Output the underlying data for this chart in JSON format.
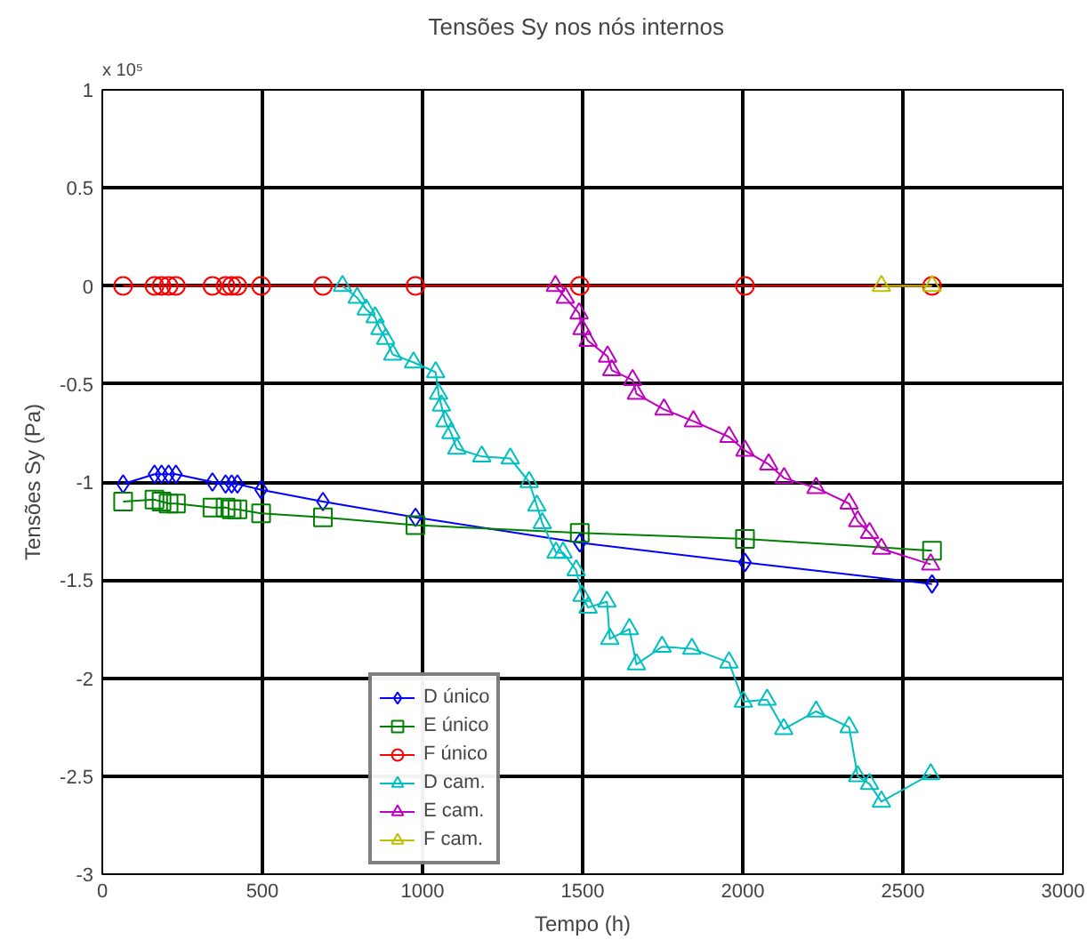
{
  "chart_data": {
    "type": "line",
    "title": "Tensões  Sy nos  nós internos",
    "xlabel": "Tempo (h)",
    "ylabel": "Tensões Sy (Pa)",
    "annotations": [
      "x 10⁵"
    ],
    "xlim": [
      0,
      3000
    ],
    "xticks": [
      0,
      500,
      1000,
      1500,
      2000,
      2500,
      3000
    ],
    "ylim": [
      -3,
      1
    ],
    "yticks": [
      -3,
      -2.5,
      -2,
      -1.5,
      -1,
      -0.5,
      0,
      0.5,
      1
    ],
    "grid": true,
    "legend": "bottom left",
    "line_style": "solid",
    "series": [
      {
        "name": "D único",
        "color": "#0000ff",
        "marker": "diamond",
        "x": [
          65,
          163,
          185,
          207,
          230,
          344,
          385,
          404,
          422,
          496,
          689,
          978,
          1491,
          2007,
          2591
        ],
        "values": [
          -1.01,
          -0.96,
          -0.96,
          -0.96,
          -0.96,
          -1.0,
          -1.01,
          -1.01,
          -1.01,
          -1.04,
          -1.1,
          -1.18,
          -1.31,
          -1.41,
          -1.52
        ]
      },
      {
        "name": "E único",
        "color": "#008000",
        "marker": "square",
        "x": [
          65,
          163,
          185,
          207,
          230,
          344,
          385,
          404,
          422,
          496,
          689,
          978,
          1491,
          2007,
          2591
        ],
        "values": [
          -1.1,
          -1.09,
          -1.1,
          -1.11,
          -1.11,
          -1.13,
          -1.13,
          -1.14,
          -1.14,
          -1.16,
          -1.18,
          -1.22,
          -1.26,
          -1.29,
          -1.35
        ]
      },
      {
        "name": "F único",
        "color": "#ff0000",
        "marker": "circle",
        "x": [
          65,
          163,
          185,
          207,
          230,
          344,
          385,
          404,
          422,
          496,
          689,
          978,
          1491,
          2007,
          2591
        ],
        "values": [
          0,
          0,
          0,
          0,
          0,
          0,
          0,
          0,
          0,
          0,
          0,
          0,
          0,
          0,
          0
        ]
      },
      {
        "name": "D cam.",
        "color": "#00bfbf",
        "marker": "triangle",
        "x": [
          750,
          796,
          824,
          852,
          867,
          885,
          907,
          972,
          1041,
          1050,
          1059,
          1070,
          1089,
          1107,
          1185,
          1274,
          1333,
          1357,
          1374,
          1417,
          1439,
          1480,
          1498,
          1517,
          1576,
          1585,
          1646,
          1668,
          1748,
          1841,
          1957,
          2002,
          2076,
          2128,
          2229,
          2332,
          2359,
          2396,
          2433,
          2587
        ],
        "values": [
          0.0,
          -0.06,
          -0.12,
          -0.16,
          -0.22,
          -0.27,
          -0.35,
          -0.39,
          -0.44,
          -0.55,
          -0.61,
          -0.69,
          -0.75,
          -0.83,
          -0.87,
          -0.88,
          -1.0,
          -1.12,
          -1.21,
          -1.36,
          -1.36,
          -1.45,
          -1.58,
          -1.64,
          -1.61,
          -1.8,
          -1.75,
          -1.93,
          -1.84,
          -1.85,
          -1.92,
          -2.12,
          -2.11,
          -2.26,
          -2.17,
          -2.25,
          -2.5,
          -2.54,
          -2.63,
          -2.49
        ]
      },
      {
        "name": "E cam.",
        "color": "#bf00bf",
        "marker": "triangle",
        "x": [
          1415,
          1446,
          1489,
          1498,
          1517,
          1578,
          1591,
          1656,
          1668,
          1754,
          1846,
          1957,
          2007,
          2081,
          2129,
          2229,
          2332,
          2359,
          2396,
          2433,
          2587
        ],
        "values": [
          0.0,
          -0.06,
          -0.14,
          -0.22,
          -0.28,
          -0.36,
          -0.43,
          -0.48,
          -0.55,
          -0.63,
          -0.69,
          -0.77,
          -0.84,
          -0.91,
          -0.98,
          -1.03,
          -1.11,
          -1.2,
          -1.26,
          -1.34,
          -1.42
        ]
      },
      {
        "name": "F cam.",
        "color": "#bfbf00",
        "marker": "triangle",
        "x": [
          2433,
          2591
        ],
        "values": [
          0,
          0
        ]
      }
    ]
  }
}
